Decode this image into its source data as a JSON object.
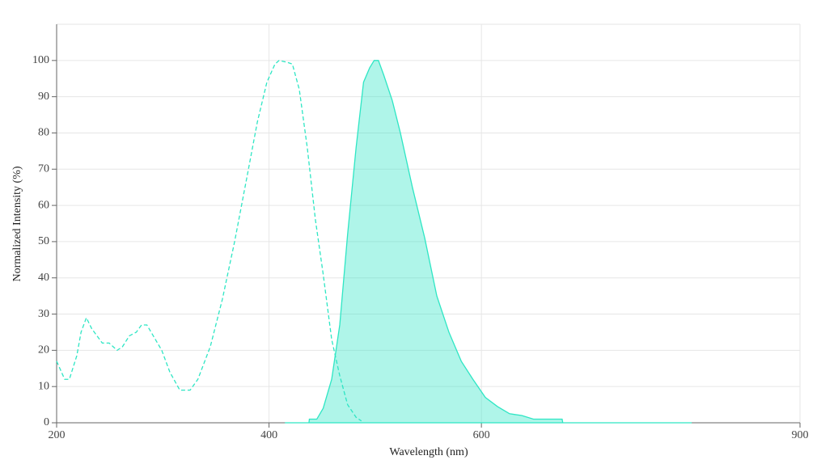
{
  "chart_data": {
    "type": "line",
    "x_label": "Wavelength (nm)",
    "y_label": "Normalized Intensity (%)",
    "xlim": [
      200,
      900
    ],
    "xticks": [
      200,
      400,
      600,
      900
    ],
    "ylim": [
      0,
      110
    ],
    "yticks": [
      0,
      10,
      20,
      30,
      40,
      50,
      60,
      70,
      80,
      90,
      100
    ],
    "grid": true,
    "series": [
      {
        "color": "#2ee6c4",
        "style": "dashed",
        "fill": false,
        "x": [
          200,
          207.6,
          212,
          219,
          223,
          228,
          233,
          238,
          243,
          249.5,
          257,
          262,
          268.5,
          275,
          280,
          285,
          291,
          299,
          306.6,
          316,
          325.7,
          333,
          344.7,
          356,
          367.6,
          379,
          389,
          398,
          405.6,
          409.5,
          417,
          422,
          428.5,
          436,
          443.7,
          451,
          459,
          466.6,
          474,
          482,
          487
        ],
        "values": [
          17,
          12,
          12,
          18.5,
          25,
          29,
          26,
          24,
          22,
          22,
          20,
          21,
          24,
          25,
          27,
          27,
          24,
          20,
          14,
          9,
          9,
          12,
          21,
          34,
          50,
          67.5,
          83,
          94,
          99,
          100,
          99.5,
          99,
          92,
          76,
          56,
          41,
          23,
          13,
          5,
          1.5,
          0.5
        ]
      },
      {
        "color": "#2ee6c4",
        "style": "solid",
        "fill": true,
        "x": [
          415,
          437.6,
          438,
          445,
          451,
          459,
          466.6,
          474,
          482,
          489,
          494.8,
          499,
          503,
          508,
          516,
          523.7,
          535,
          546.6,
          558,
          569.4,
          581,
          592,
          603.7,
          615,
          626.5,
          638,
          649,
          676,
          676.6,
          798
        ],
        "values": [
          0,
          0,
          1,
          1,
          4,
          12,
          27,
          52,
          76,
          94,
          98,
          100,
          100,
          96,
          89,
          80,
          65,
          51,
          35,
          25,
          17,
          12,
          7,
          4.5,
          2.5,
          2,
          1,
          1,
          0,
          0
        ]
      }
    ]
  }
}
